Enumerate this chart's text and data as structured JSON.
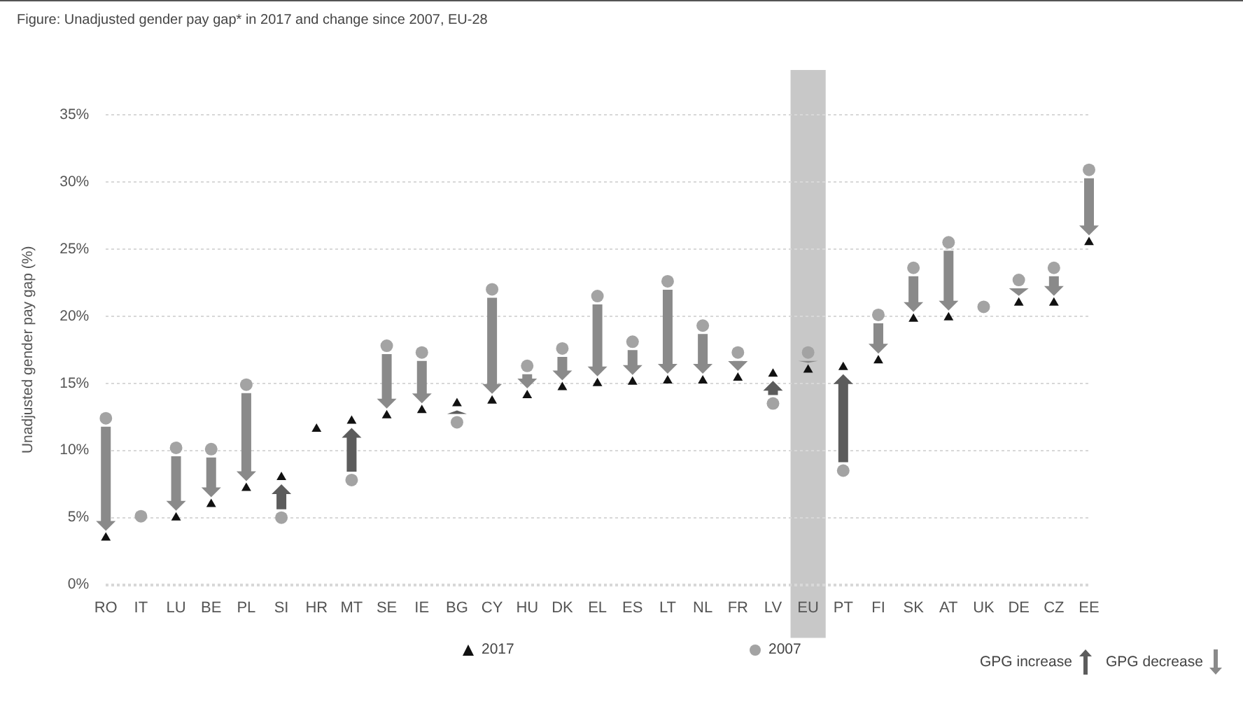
{
  "chart_data": {
    "type": "scatter",
    "title": "Figure: Unadjusted gender pay gap* in 2017 and change since 2007, EU-28",
    "ylabel": "Unadjusted gender pay gap (%)",
    "categories": [
      "RO",
      "IT",
      "LU",
      "BE",
      "PL",
      "SI",
      "HR",
      "MT",
      "SE",
      "IE",
      "BG",
      "CY",
      "HU",
      "DK",
      "EL",
      "ES",
      "LT",
      "NL",
      "FR",
      "LV",
      "EU",
      "PT",
      "FI",
      "SK",
      "AT",
      "UK",
      "DE",
      "CZ",
      "EE"
    ],
    "series": [
      {
        "name": "2007",
        "color": "#a3a3a3",
        "marker": "circle",
        "values": [
          12.4,
          5.1,
          10.2,
          10.1,
          14.9,
          5.0,
          null,
          7.8,
          17.8,
          17.3,
          12.1,
          22.0,
          16.3,
          17.6,
          21.5,
          18.1,
          22.6,
          19.3,
          17.3,
          13.5,
          17.3,
          8.5,
          20.1,
          23.6,
          25.5,
          20.7,
          22.7,
          23.6,
          30.9
        ]
      },
      {
        "name": "2017",
        "color": "#111111",
        "marker": "triangle",
        "values": [
          3.5,
          null,
          5.0,
          6.0,
          7.2,
          8.0,
          11.6,
          12.2,
          12.6,
          13.0,
          13.5,
          13.7,
          14.1,
          14.7,
          15.0,
          15.1,
          15.2,
          15.2,
          15.4,
          15.7,
          16.0,
          16.2,
          16.7,
          19.8,
          19.9,
          null,
          21.0,
          21.0,
          25.5
        ]
      }
    ],
    "ylim": [
      0,
      35
    ],
    "yticks": [
      {
        "value": 0,
        "label": "0%"
      },
      {
        "value": 5,
        "label": "5%"
      },
      {
        "value": 10,
        "label": "10%"
      },
      {
        "value": 15,
        "label": "15%"
      },
      {
        "value": 20,
        "label": "20%"
      },
      {
        "value": 25,
        "label": "25%"
      },
      {
        "value": 30,
        "label": "30%"
      },
      {
        "value": 35,
        "label": "35%"
      }
    ],
    "grid": "y",
    "legend": "bottom",
    "bands": [
      {
        "axis": "x",
        "from": "EU",
        "to": "EU",
        "color": "#c8c8c8"
      }
    ],
    "annotations": [
      "GPG increase",
      "GPG decrease"
    ]
  }
}
